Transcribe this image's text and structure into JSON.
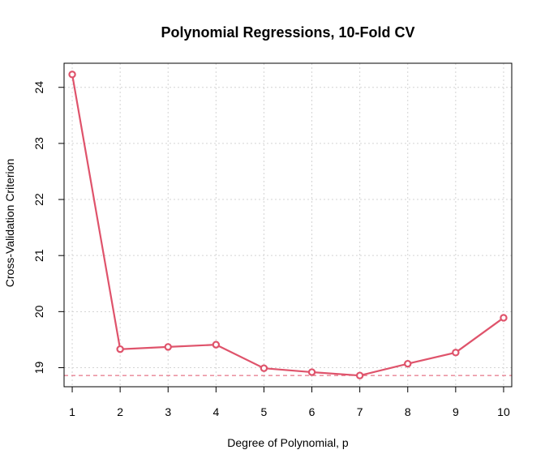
{
  "chart_data": {
    "type": "line",
    "title": "Polynomial Regressions, 10-Fold CV",
    "xlabel": "Degree of Polynomial, p",
    "ylabel": "Cross-Validation Criterion",
    "x": [
      1,
      2,
      3,
      4,
      5,
      6,
      7,
      8,
      9,
      10
    ],
    "series": [
      {
        "values": [
          24.23,
          19.33,
          19.37,
          19.41,
          18.99,
          18.92,
          18.86,
          19.07,
          19.27,
          19.89
        ]
      }
    ],
    "reference_line": {
      "orientation": "horizontal",
      "value": 18.86,
      "style": "dashed"
    },
    "xlim": [
      0.83,
      10.17
    ],
    "ylim": [
      18.66,
      24.43
    ],
    "xticks": [
      1,
      2,
      3,
      4,
      5,
      6,
      7,
      8,
      9,
      10
    ],
    "yticks": [
      19,
      20,
      21,
      22,
      23,
      24
    ],
    "grid": true,
    "legend": "none",
    "colors": {
      "series": "#DF536B",
      "grid": "#D3D3D3",
      "axis": "#000000"
    }
  }
}
